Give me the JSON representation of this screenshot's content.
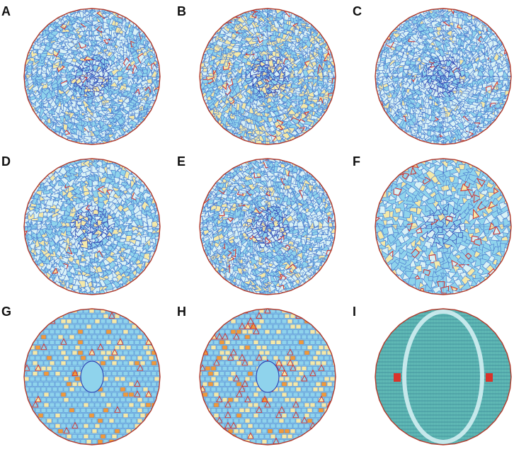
{
  "panels": [
    {
      "label": "A",
      "style": "quasi",
      "symmetry": 12,
      "density": 0.75,
      "warm_fraction": 0.1,
      "red_fraction": 0.02
    },
    {
      "label": "B",
      "style": "quasi",
      "symmetry": 12,
      "density": 0.55,
      "warm_fraction": 0.35,
      "red_fraction": 0.04
    },
    {
      "label": "C",
      "style": "quasi",
      "symmetry": 12,
      "density": 0.8,
      "warm_fraction": 0.06,
      "red_fraction": 0.02
    },
    {
      "label": "D",
      "style": "quasi",
      "symmetry": 8,
      "density": 0.75,
      "warm_fraction": 0.18,
      "red_fraction": 0.02
    },
    {
      "label": "E",
      "style": "quasi",
      "symmetry": 12,
      "density": 0.75,
      "warm_fraction": 0.15,
      "red_fraction": 0.03
    },
    {
      "label": "F",
      "style": "quasi",
      "symmetry": 4,
      "density": 0.7,
      "warm_fraction": 0.25,
      "red_fraction": 0.1
    },
    {
      "label": "G",
      "style": "rows",
      "symmetry": 4,
      "density": 0.7,
      "warm_fraction": 0.2,
      "red_fraction": 0.06
    },
    {
      "label": "H",
      "style": "rows",
      "symmetry": 2,
      "density": 0.6,
      "warm_fraction": 0.25,
      "red_fraction": 0.1
    },
    {
      "label": "I",
      "style": "lattice",
      "symmetry": 2,
      "density": 0.5,
      "warm_fraction": 0.15,
      "red_fraction": 0.03
    }
  ],
  "colors": {
    "boundary": "#b23a2b",
    "dense_edge": "#2f45b5",
    "mid_edge": "#4f7fd0",
    "light_fill": "#8fd3ec",
    "pale_fill": "#d9f2f6",
    "warm_fill": "#f5e9a8",
    "orange": "#f09a3a",
    "red": "#d9322a",
    "teal_bg": "#5fb8b4"
  }
}
